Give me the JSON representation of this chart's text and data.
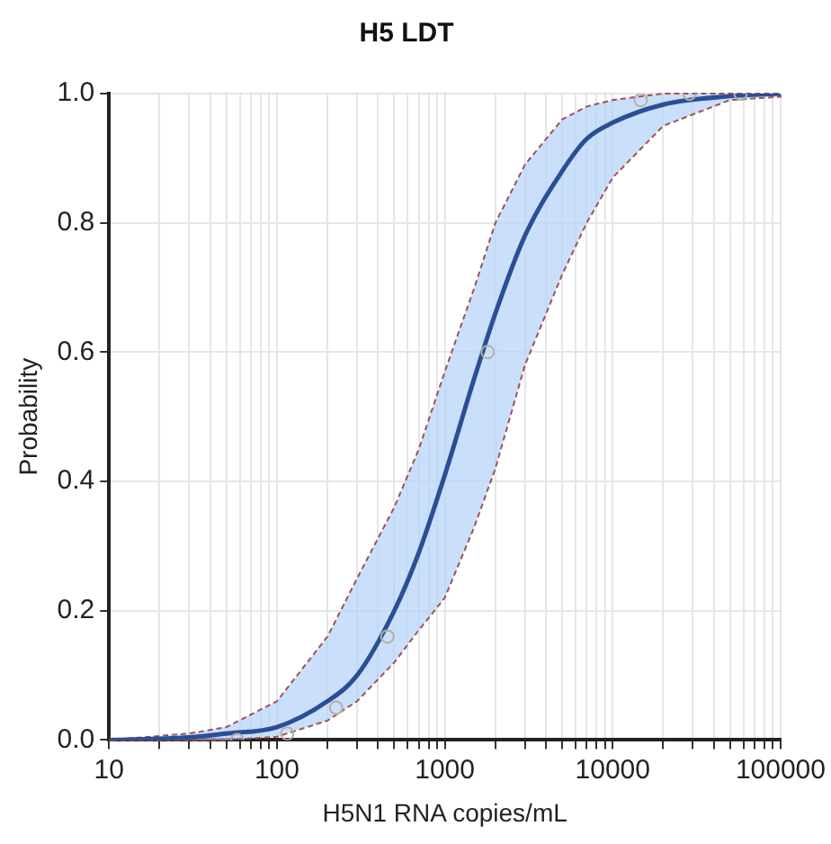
{
  "chart_data": {
    "type": "line",
    "title": "H5 LDT",
    "xlabel": "H5N1 RNA copies/mL",
    "ylabel": "Probability",
    "log": "x",
    "grid": true,
    "legend": false,
    "xlim": [
      10,
      100000
    ],
    "ylim": [
      0,
      1.0
    ],
    "xticks": [
      10,
      {
        "value": 20,
        "label": null
      },
      {
        "value": 30,
        "label": null
      },
      {
        "value": 40,
        "label": null
      },
      {
        "value": 50,
        "label": null
      },
      {
        "value": 60,
        "label": null
      },
      {
        "value": 70,
        "label": null
      },
      {
        "value": 80,
        "label": null
      },
      {
        "value": 90,
        "label": null
      },
      100,
      {
        "value": 200,
        "label": null
      },
      {
        "value": 300,
        "label": null
      },
      {
        "value": 400,
        "label": null
      },
      {
        "value": 500,
        "label": null
      },
      {
        "value": 600,
        "label": null
      },
      {
        "value": 700,
        "label": null
      },
      {
        "value": 800,
        "label": null
      },
      {
        "value": 900,
        "label": null
      },
      1000,
      {
        "value": 2000,
        "label": null
      },
      {
        "value": 3000,
        "label": null
      },
      {
        "value": 4000,
        "label": null
      },
      {
        "value": 5000,
        "label": null
      },
      {
        "value": 6000,
        "label": null
      },
      {
        "value": 7000,
        "label": null
      },
      {
        "value": 8000,
        "label": null
      },
      {
        "value": 9000,
        "label": null
      },
      10000,
      {
        "value": 20000,
        "label": null
      },
      {
        "value": 30000,
        "label": null
      },
      {
        "value": 40000,
        "label": null
      },
      {
        "value": 50000,
        "label": null
      },
      {
        "value": 60000,
        "label": null
      },
      {
        "value": 70000,
        "label": null
      },
      {
        "value": 80000,
        "label": null
      },
      {
        "value": 90000,
        "label": null
      },
      100000
    ],
    "yticks": [
      {
        "value": 0,
        "label": "0.0"
      },
      0.2,
      0.4,
      0.6,
      0.8,
      {
        "value": 1,
        "label": "1.0"
      }
    ],
    "series": [
      {
        "color": "#2a4f96",
        "line_style": "solid",
        "marker": "none",
        "x": [
          10,
          30,
          50,
          100,
          200,
          300,
          500,
          700,
          1000,
          1500,
          2000,
          3000,
          5000,
          7000,
          10000,
          20000,
          50000,
          100000
        ],
        "values": [
          0.0,
          0.004,
          0.01,
          0.02,
          0.06,
          0.1,
          0.2,
          0.29,
          0.41,
          0.56,
          0.66,
          0.78,
          0.88,
          0.93,
          0.955,
          0.983,
          0.996,
          1.0
        ],
        "lower": [
          0,
          0,
          0,
          0.005,
          0.03,
          0.06,
          0.12,
          0.17,
          0.22,
          0.33,
          0.42,
          0.58,
          0.72,
          0.8,
          0.87,
          0.95,
          0.99,
          0.995
        ],
        "upper": [
          0.0,
          0.01,
          0.02,
          0.06,
          0.16,
          0.25,
          0.36,
          0.45,
          0.57,
          0.7,
          0.8,
          0.89,
          0.96,
          0.98,
          0.99,
          1.0,
          1.0,
          1.0
        ]
      },
      {
        "type": "scatter",
        "color": "#b4b0a0",
        "marker": "circle",
        "x": [
          58,
          115,
          225,
          455,
          1800,
          14700,
          28700,
          57700
        ],
        "values": [
          0.0,
          0.01,
          0.05,
          0.16,
          0.6,
          0.99,
          1.0,
          1.0
        ]
      }
    ]
  }
}
